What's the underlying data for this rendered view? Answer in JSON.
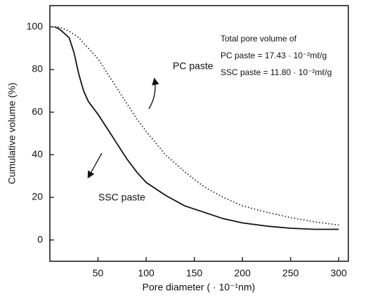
{
  "chart_data": {
    "type": "line",
    "x_label": "Pore diameter ( · 10⁻¹nm)",
    "y_label": "Cumulative volume (%)",
    "annotations": [
      "Total pore volume of",
      "PC paste = 17.43 · 10⁻²mℓ/g",
      "SSC paste = 11.80 · 10⁻²mℓ/g"
    ],
    "xlim": [
      0,
      310
    ],
    "xticks": [
      50,
      100,
      150,
      200,
      250,
      300
    ],
    "ylim": [
      -10,
      110
    ],
    "yticks": [
      0,
      20,
      40,
      60,
      80,
      100
    ],
    "grid": false,
    "series": [
      {
        "name": "PC paste",
        "color": "#111111",
        "dash": "dotted",
        "x": [
          5,
          10,
          20,
          30,
          40,
          50,
          60,
          70,
          80,
          90,
          100,
          120,
          140,
          160,
          180,
          200,
          225,
          250,
          275,
          300
        ],
        "values": [
          100,
          100,
          98,
          95,
          90,
          85,
          78,
          71,
          64,
          57,
          51,
          40,
          32,
          25,
          20,
          16,
          13,
          10.5,
          8.5,
          7
        ]
      },
      {
        "name": "SSC paste",
        "color": "#111111",
        "dash": "solid",
        "x": [
          5,
          10,
          20,
          25,
          30,
          35,
          40,
          50,
          60,
          70,
          80,
          90,
          100,
          120,
          140,
          160,
          180,
          200,
          225,
          250,
          275,
          300
        ],
        "values": [
          100,
          99,
          95,
          88,
          78,
          70,
          65,
          59,
          52,
          45,
          38,
          32,
          27,
          21,
          16,
          13,
          10,
          8,
          6.5,
          5.5,
          5,
          5
        ]
      }
    ]
  }
}
